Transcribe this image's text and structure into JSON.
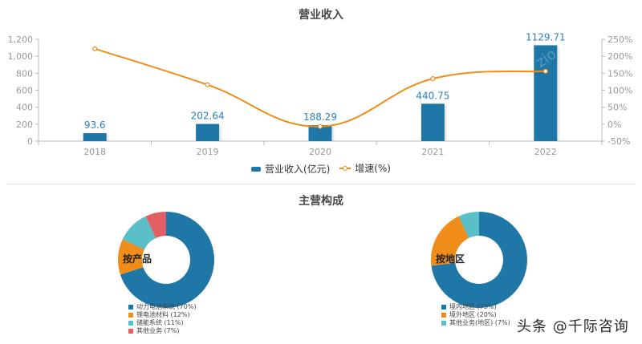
{
  "top_chart": {
    "title": "营业收入",
    "legend": {
      "bar": "营业收入(亿元)",
      "line": "增速(%)"
    },
    "left_axis_ticks": [
      "1,200",
      "1,000",
      "800",
      "600",
      "400",
      "200",
      "0"
    ],
    "right_axis_ticks": [
      "250%",
      "200%",
      "150%",
      "100%",
      "50%",
      "0%",
      "-50%"
    ],
    "years": [
      "2018",
      "2019",
      "2020",
      "2021",
      "2022"
    ],
    "bar_labels": [
      "93.6",
      "202.64",
      "188.29",
      "440.75",
      "1129.71"
    ]
  },
  "bottom_section": {
    "title": "主营构成",
    "product_donut": {
      "center_label": "按产品",
      "legend": [
        "动力电池系统 (70%)",
        "锂电池材料 (12%)",
        "储能系统 (11%)",
        "其他业务 (7%)"
      ]
    },
    "region_donut": {
      "center_label": "按地区",
      "legend": [
        "境内地区 (73%)",
        "境外地区 (20%)",
        "其他业务(地区) (7%)"
      ]
    }
  },
  "watermark": "头条 @千际咨询",
  "colors": {
    "bar": "#1f77a8",
    "line": "#f08c1a",
    "teal": "#5bbfc7",
    "red": "#e35f63",
    "axis": "#999999",
    "label": "#2c7fb8"
  },
  "chart_data": [
    {
      "type": "bar+line",
      "title": "营业收入",
      "categories": [
        "2018",
        "2019",
        "2020",
        "2021",
        "2022"
      ],
      "series": [
        {
          "name": "营业收入(亿元)",
          "type": "bar",
          "axis": "left",
          "values": [
            93.6,
            202.64,
            188.29,
            440.75,
            1129.71
          ]
        },
        {
          "name": "增速(%)",
          "type": "line",
          "axis": "right",
          "values": [
            222,
            116,
            -7,
            134,
            156
          ]
        }
      ],
      "ylim_left": [
        0,
        1200
      ],
      "ylim_right": [
        -50,
        250
      ],
      "legend_position": "bottom"
    },
    {
      "type": "pie",
      "title": "主营构成 - 按产品",
      "labels": [
        "动力电池系统",
        "锂电池材料",
        "储能系统",
        "其他业务"
      ],
      "values": [
        70,
        12,
        11,
        7
      ]
    },
    {
      "type": "pie",
      "title": "主营构成 - 按地区",
      "labels": [
        "境内地区",
        "境外地区",
        "其他业务(地区)"
      ],
      "values": [
        73,
        20,
        7
      ]
    }
  ]
}
